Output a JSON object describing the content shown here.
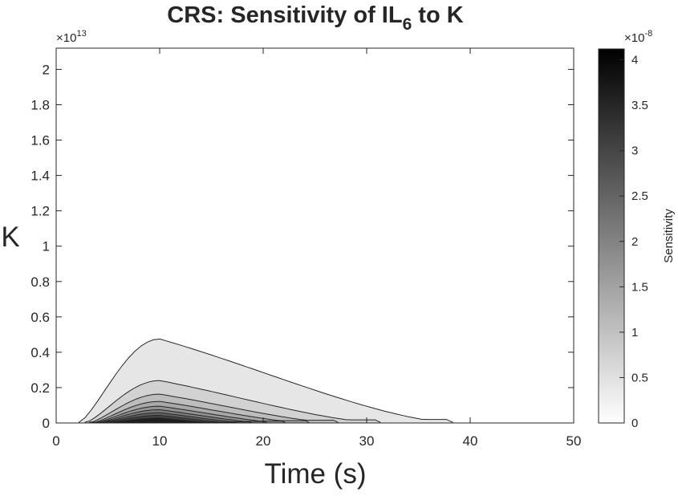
{
  "chart_data": {
    "type": "contour",
    "title_main": "CRS: Sensitivity of IL",
    "title_sub": "6",
    "title_tail": " to K",
    "xlabel": "Time (s)",
    "ylabel": "K",
    "xlim": [
      0,
      50
    ],
    "ylim": [
      0,
      21200000000000
    ],
    "xticks": [
      "0",
      "10",
      "20",
      "30",
      "40",
      "50"
    ],
    "xtick_values": [
      0,
      10,
      20,
      30,
      40,
      50
    ],
    "yticks": [
      "0",
      "0.2",
      "0.4",
      "0.6",
      "0.8",
      "1",
      "1.2",
      "1.4",
      "1.6",
      "1.8",
      "2"
    ],
    "ytick_values": [
      0,
      0.2,
      0.4,
      0.6,
      0.8,
      1.0,
      1.2,
      1.4,
      1.6,
      1.8,
      2.0
    ],
    "y_exponent_base": "×10",
    "y_exponent_power": "13",
    "colorbar": {
      "label": "Sensitivity",
      "lim": [
        0,
        4.12e-08
      ],
      "ticks": [
        "0",
        "0.5",
        "1",
        "1.5",
        "2",
        "2.5",
        "3",
        "3.5",
        "4"
      ],
      "tick_values": [
        0,
        0.5,
        1,
        1.5,
        2,
        2.5,
        3,
        3.5,
        4
      ],
      "exponent_base": "×10",
      "exponent_power": "-8",
      "colormap": "gray-reversed"
    },
    "contours": [
      {
        "level": 0.2,
        "t_start": 2.2,
        "t_peak": 10.0,
        "t_end": 38.3,
        "k_peak": 0.475,
        "fill": "#e6e6e6"
      },
      {
        "level": 0.7,
        "t_start": 2.8,
        "t_peak": 10.0,
        "t_end": 31.3,
        "k_peak": 0.24,
        "fill": "#d2d2d2"
      },
      {
        "level": 1.2,
        "t_start": 3.2,
        "t_peak": 10.0,
        "t_end": 27.2,
        "k_peak": 0.163,
        "fill": "#bdbdbd"
      },
      {
        "level": 1.7,
        "t_start": 3.5,
        "t_peak": 10.0,
        "t_end": 24.4,
        "k_peak": 0.122,
        "fill": "#a8a8a8"
      },
      {
        "level": 2.2,
        "t_start": 3.7,
        "t_peak": 10.0,
        "t_end": 22.1,
        "k_peak": 0.095,
        "fill": "#939393"
      },
      {
        "level": 2.7,
        "t_start": 3.9,
        "t_peak": 10.0,
        "t_end": 20.3,
        "k_peak": 0.075,
        "fill": "#7c7c7c"
      },
      {
        "level": 3.2,
        "t_start": 4.1,
        "t_peak": 10.0,
        "t_end": 18.8,
        "k_peak": 0.058,
        "fill": "#626262"
      },
      {
        "level": 3.7,
        "t_start": 4.3,
        "t_peak": 10.0,
        "t_end": 17.4,
        "k_peak": 0.043,
        "fill": "#444444"
      },
      {
        "level": 4.0,
        "t_start": 4.6,
        "t_peak": 10.0,
        "t_end": 16.0,
        "k_peak": 0.028,
        "fill": "#1e1e1e"
      }
    ]
  }
}
